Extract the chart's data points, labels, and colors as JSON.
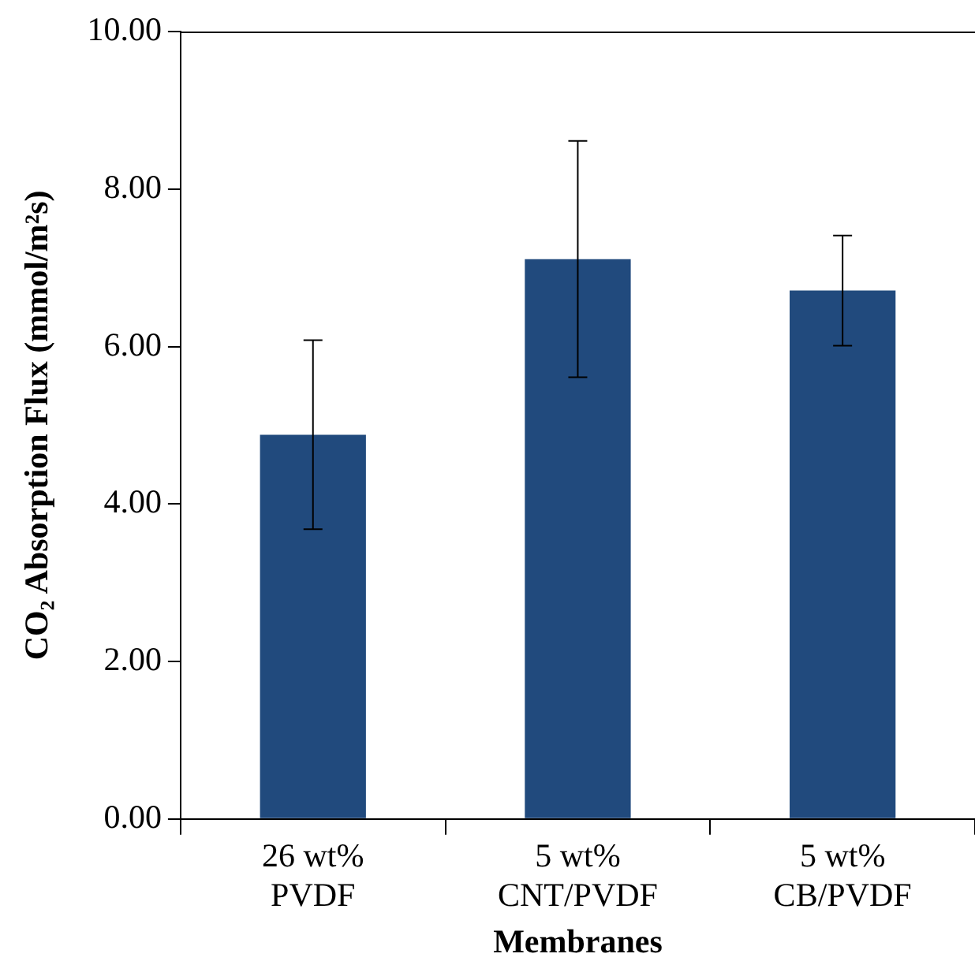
{
  "chart_data": {
    "type": "bar",
    "xlabel": "Membranes",
    "ylabel": "CO₂ Absorption Flux (mmol/m²s)",
    "categories": [
      "26 wt%\nPVDF",
      "5 wt%\nCNT/PVDF",
      "5 wt%\nCB/PVDF"
    ],
    "values": [
      4.88,
      7.11,
      6.71
    ],
    "color": "#214a7d",
    "errors": [
      1.2,
      1.5,
      0.7
    ],
    "ylim": [
      0,
      10
    ],
    "yticks": [
      {
        "value": 0,
        "label": "0.00"
      },
      {
        "value": 2,
        "label": "2.00"
      },
      {
        "value": 4,
        "label": "4.00"
      },
      {
        "value": 6,
        "label": "6.00"
      },
      {
        "value": 8,
        "label": "8.00"
      },
      {
        "value": 10,
        "label": "10.00"
      }
    ],
    "grid": false,
    "legend": false
  }
}
